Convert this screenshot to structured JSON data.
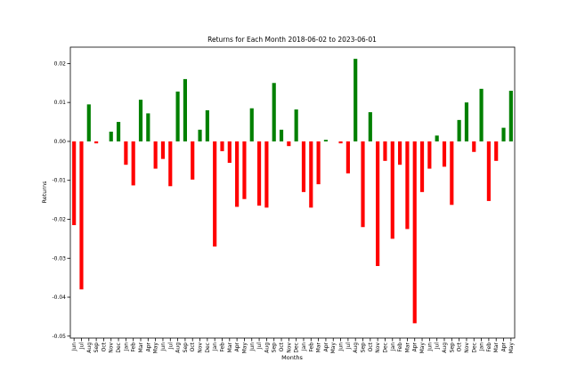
{
  "chart_data": {
    "type": "bar",
    "title": "Returns for Each Month 2018-06-02 to 2023-06-01",
    "xlabel": "Months",
    "ylabel": "Returns",
    "categories": [
      "Jun",
      "Jul",
      "Aug",
      "Sep",
      "Oct",
      "Nov",
      "Dec",
      "Jan",
      "Feb",
      "Mar",
      "Apr",
      "May",
      "Jun",
      "Jul",
      "Aug",
      "Sep",
      "Oct",
      "Nov",
      "Dec",
      "Jan",
      "Feb",
      "Mar",
      "Apr",
      "May",
      "Jun",
      "Jul",
      "Aug",
      "Sep",
      "Oct",
      "Nov",
      "Dec",
      "Jan",
      "Feb",
      "Mar",
      "Apr",
      "May",
      "Jun",
      "Jul",
      "Aug",
      "Sep",
      "Oct",
      "Nov",
      "Dec",
      "Jan",
      "Feb",
      "Mar",
      "Apr",
      "May",
      "Jun",
      "Jul",
      "Aug",
      "Sep",
      "Oct",
      "Nov",
      "Dec",
      "Jan",
      "Feb",
      "Mar",
      "Apr",
      "May"
    ],
    "values": [
      -0.0215,
      -0.038,
      0.0095,
      -0.0005,
      0,
      0.0025,
      0.005,
      -0.006,
      -0.0113,
      0.0107,
      0.0072,
      -0.007,
      -0.0045,
      -0.0115,
      0.0128,
      0.016,
      -0.0098,
      0.003,
      0.008,
      -0.027,
      -0.0025,
      -0.0055,
      -0.0168,
      -0.0148,
      0.0085,
      -0.0165,
      -0.017,
      0.015,
      0.003,
      -0.0012,
      0.0082,
      -0.013,
      -0.017,
      -0.011,
      0.0004,
      0,
      -0.0005,
      -0.0082,
      0.0212,
      -0.022,
      0.0075,
      -0.032,
      -0.005,
      -0.025,
      -0.006,
      -0.0225,
      -0.0467,
      -0.013,
      -0.007,
      0.0015,
      -0.0065,
      -0.0163,
      0.0055,
      0.01,
      -0.0027,
      0.0135,
      -0.0153,
      -0.005,
      0.0035,
      0.013
    ],
    "positive_color": "green",
    "negative_color": "red",
    "ylim": [
      -0.0505,
      0.0242
    ],
    "yticks": [
      -0.05,
      -0.04,
      -0.03,
      -0.02,
      -0.01,
      {
        "value": 0,
        "label": "0.00"
      },
      0.01,
      0.02
    ]
  }
}
